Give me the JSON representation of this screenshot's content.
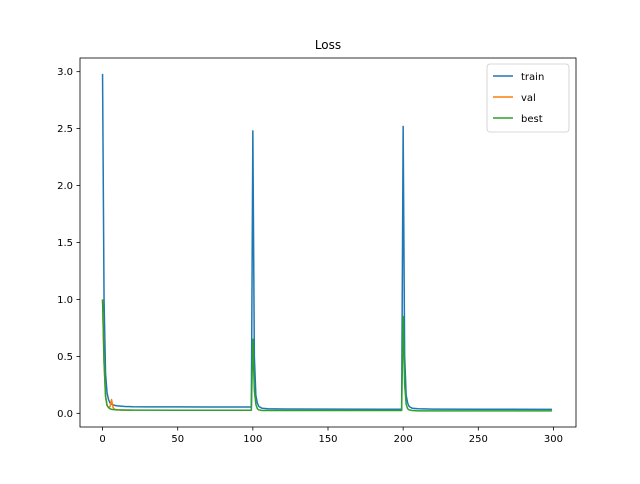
{
  "chart_data": {
    "type": "line",
    "title": "Loss",
    "xlabel": "",
    "ylabel": "",
    "xlim": [
      -15,
      315
    ],
    "ylim": [
      -0.12,
      3.12
    ],
    "xticks": [
      0,
      50,
      100,
      150,
      200,
      250,
      300
    ],
    "yticks": [
      0.0,
      0.5,
      1.0,
      1.5,
      2.0,
      2.5,
      3.0
    ],
    "grid": false,
    "legend_position": "top-right",
    "series": [
      {
        "name": "train",
        "color": "#1f77b4",
        "x": [
          0,
          1,
          2,
          3,
          4,
          5,
          6,
          8,
          10,
          15,
          20,
          30,
          50,
          70,
          99,
          100,
          101,
          102,
          103,
          104,
          106,
          110,
          120,
          150,
          199,
          200,
          201,
          202,
          203,
          204,
          206,
          210,
          220,
          250,
          299
        ],
        "y": [
          2.98,
          1.0,
          0.35,
          0.18,
          0.12,
          0.09,
          0.08,
          0.07,
          0.065,
          0.06,
          0.058,
          0.057,
          0.057,
          0.056,
          0.056,
          2.48,
          0.5,
          0.16,
          0.09,
          0.06,
          0.045,
          0.04,
          0.038,
          0.037,
          0.036,
          2.52,
          0.5,
          0.16,
          0.09,
          0.06,
          0.045,
          0.04,
          0.037,
          0.036,
          0.035
        ]
      },
      {
        "name": "val",
        "color": "#ff7f0e",
        "x": [
          0,
          1,
          2,
          3,
          4,
          5,
          6,
          7,
          8,
          10,
          15,
          20
        ],
        "y": [
          1.0,
          0.45,
          0.15,
          0.07,
          0.05,
          0.06,
          0.12,
          0.05,
          0.035,
          0.03,
          0.028,
          0.027
        ]
      },
      {
        "name": "best",
        "color": "#2ca02c",
        "x": [
          0,
          1,
          2,
          3,
          4,
          5,
          6,
          8,
          10,
          20,
          50,
          99,
          100,
          101,
          102,
          103,
          104,
          106,
          110,
          130,
          150,
          199,
          200,
          201,
          202,
          203,
          204,
          206,
          210,
          230,
          250,
          299
        ],
        "y": [
          1.0,
          0.45,
          0.15,
          0.07,
          0.05,
          0.04,
          0.035,
          0.032,
          0.03,
          0.028,
          0.027,
          0.027,
          0.65,
          0.2,
          0.08,
          0.04,
          0.03,
          0.025,
          0.025,
          0.025,
          0.025,
          0.025,
          0.85,
          0.25,
          0.08,
          0.04,
          0.03,
          0.025,
          0.022,
          0.022,
          0.022,
          0.022
        ]
      }
    ]
  }
}
